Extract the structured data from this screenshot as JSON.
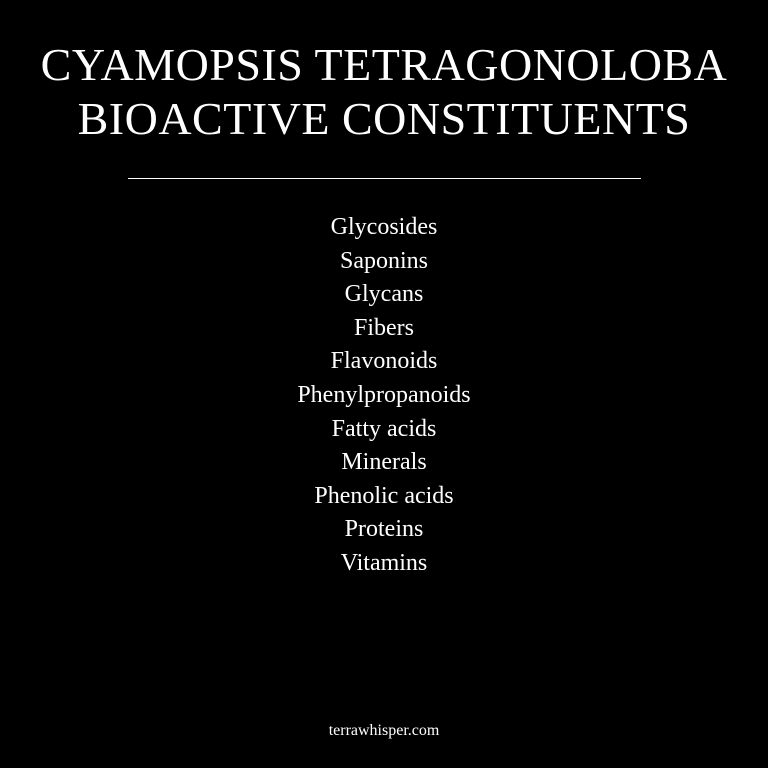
{
  "title": {
    "line1": "CYAMOPSIS TETRAGONOLOBA",
    "line2": "BIOACTIVE CONSTITUENTS"
  },
  "constituents": [
    "Glycosides",
    "Saponins",
    "Glycans",
    "Fibers",
    "Flavonoids",
    "Phenylpropanoids",
    "Fatty acids",
    "Minerals",
    "Phenolic acids",
    "Proteins",
    "Vitamins"
  ],
  "footer": {
    "site": "terrawhisper.com"
  },
  "colors": {
    "background": "#000000",
    "text": "#ffffff"
  }
}
